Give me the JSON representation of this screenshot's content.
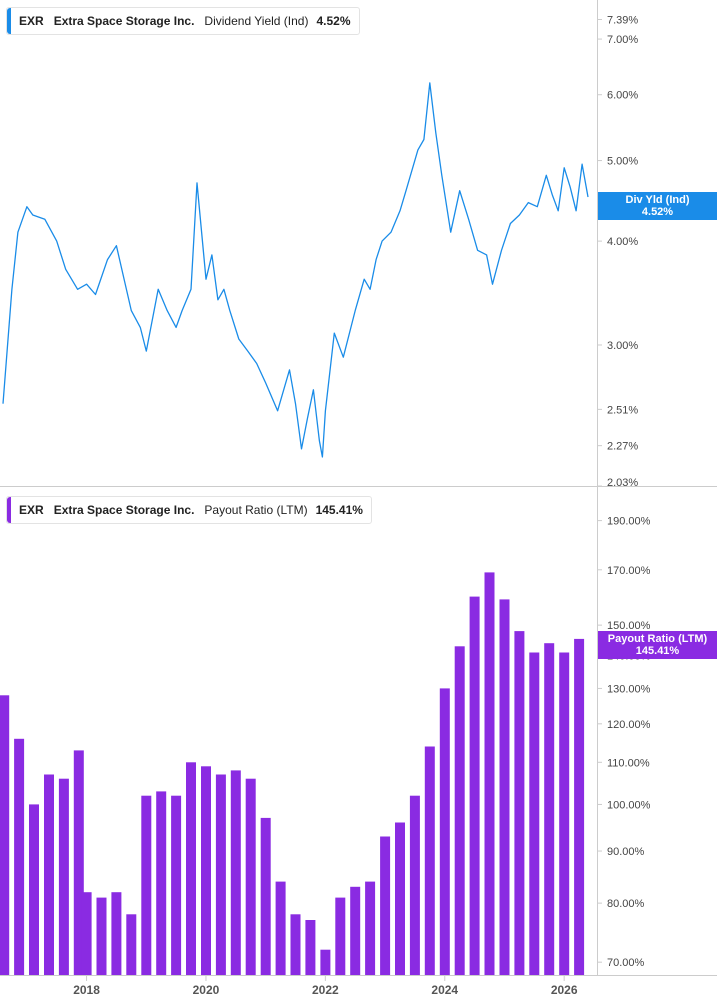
{
  "colors": {
    "yield": "#1a8ce8",
    "payout": "#8a2be2",
    "axis": "#cccccc"
  },
  "legend_top": {
    "ticker": "EXR",
    "company": "Extra Space Storage Inc.",
    "metric": "Dividend Yield (Ind)",
    "value": "4.52%"
  },
  "legend_bottom": {
    "ticker": "EXR",
    "company": "Extra Space Storage Inc.",
    "metric": "Payout Ratio (LTM)",
    "value": "145.41%"
  },
  "badge_top": {
    "label": "Div Yld (Ind)",
    "value": "4.52%"
  },
  "badge_bottom": {
    "label": "Payout Ratio (LTM)",
    "value": "145.41%"
  },
  "chart_data": [
    {
      "type": "line",
      "scale": "log",
      "series": [
        {
          "name": "Dividend Yield (Ind)",
          "x": [
            2016.6,
            2016.75,
            2016.85,
            2017.0,
            2017.1,
            2017.3,
            2017.5,
            2017.65,
            2017.85,
            2018.0,
            2018.15,
            2018.35,
            2018.5,
            2018.75,
            2018.9,
            2019.0,
            2019.2,
            2019.35,
            2019.5,
            2019.6,
            2019.75,
            2019.85,
            2020.0,
            2020.1,
            2020.2,
            2020.3,
            2020.4,
            2020.55,
            2020.7,
            2020.85,
            2021.0,
            2021.2,
            2021.4,
            2021.5,
            2021.6,
            2021.7,
            2021.8,
            2021.9,
            2021.95,
            2022.0,
            2022.15,
            2022.3,
            2022.5,
            2022.65,
            2022.75,
            2022.85,
            2022.95,
            2023.1,
            2023.25,
            2023.35,
            2023.55,
            2023.65,
            2023.75,
            2023.85,
            2023.95,
            2024.1,
            2024.25,
            2024.4,
            2024.55,
            2024.7,
            2024.8,
            2024.95,
            2025.1,
            2025.25,
            2025.4,
            2025.55,
            2025.7,
            2025.8,
            2025.9,
            2026.0,
            2026.1,
            2026.2,
            2026.3,
            2026.4
          ],
          "y": [
            2.55,
            3.5,
            4.1,
            4.4,
            4.3,
            4.25,
            4.0,
            3.7,
            3.5,
            3.55,
            3.45,
            3.8,
            3.95,
            3.3,
            3.15,
            2.95,
            3.5,
            3.3,
            3.15,
            3.3,
            3.5,
            4.7,
            3.6,
            3.85,
            3.4,
            3.5,
            3.3,
            3.05,
            2.95,
            2.85,
            2.7,
            2.5,
            2.8,
            2.55,
            2.25,
            2.45,
            2.65,
            2.3,
            2.2,
            2.5,
            3.1,
            2.9,
            3.3,
            3.6,
            3.5,
            3.8,
            4.0,
            4.1,
            4.35,
            4.6,
            5.15,
            5.3,
            6.2,
            5.4,
            4.8,
            4.1,
            4.6,
            4.25,
            3.9,
            3.85,
            3.55,
            3.9,
            4.2,
            4.3,
            4.45,
            4.4,
            4.8,
            4.55,
            4.35,
            4.9,
            4.65,
            4.35,
            4.95,
            4.52
          ]
        }
      ],
      "x_range": [
        2016.55,
        2026.55
      ],
      "y_range": [
        2.03,
        7.8
      ],
      "y_ticks": [
        "7.39%",
        "7.00%",
        "6.00%",
        "5.00%",
        "4.00%",
        "3.00%",
        "2.51%",
        "2.27%",
        "2.03%"
      ],
      "y_tick_values": [
        7.39,
        7.0,
        6.0,
        5.0,
        4.0,
        3.0,
        2.51,
        2.27,
        2.03
      ]
    },
    {
      "type": "bar",
      "scale": "log",
      "series": [
        {
          "name": "Payout Ratio (LTM)",
          "x": [
            2016.62,
            2016.87,
            2017.12,
            2017.37,
            2017.62,
            2017.87,
            2018.0,
            2018.25,
            2018.5,
            2018.75,
            2019.0,
            2019.25,
            2019.5,
            2019.75,
            2020.0,
            2020.25,
            2020.5,
            2020.75,
            2021.0,
            2021.25,
            2021.5,
            2021.75,
            2022.0,
            2022.25,
            2022.5,
            2022.75,
            2023.0,
            2023.25,
            2023.5,
            2023.75,
            2024.0,
            2024.25,
            2024.5,
            2024.75,
            2025.0,
            2025.25,
            2025.5,
            2025.75,
            2026.0,
            2026.25
          ],
          "values": [
            128,
            116,
            100,
            107,
            106,
            113,
            82,
            81,
            82,
            78,
            102,
            103,
            102,
            110,
            109,
            107,
            108,
            106,
            97,
            84,
            78,
            77,
            72,
            81,
            83,
            84,
            93,
            96,
            102,
            114,
            130,
            143,
            160,
            169,
            159,
            148,
            141,
            144,
            141,
            145.41
          ]
        }
      ],
      "x_range": [
        2016.55,
        2026.55
      ],
      "y_range": [
        68,
        205
      ],
      "y_ticks": [
        "190.00%",
        "170.00%",
        "150.00%",
        "140.00%",
        "130.00%",
        "120.00%",
        "110.00%",
        "100.00%",
        "90.00%",
        "80.00%",
        "70.00%"
      ],
      "y_tick_values": [
        190,
        170,
        150,
        140,
        130,
        120,
        110,
        100,
        90,
        80,
        70
      ]
    }
  ],
  "x_axis": {
    "ticks": [
      "2018",
      "2020",
      "2022",
      "2024",
      "2026"
    ],
    "tick_values": [
      2018,
      2020,
      2022,
      2024,
      2026
    ]
  }
}
